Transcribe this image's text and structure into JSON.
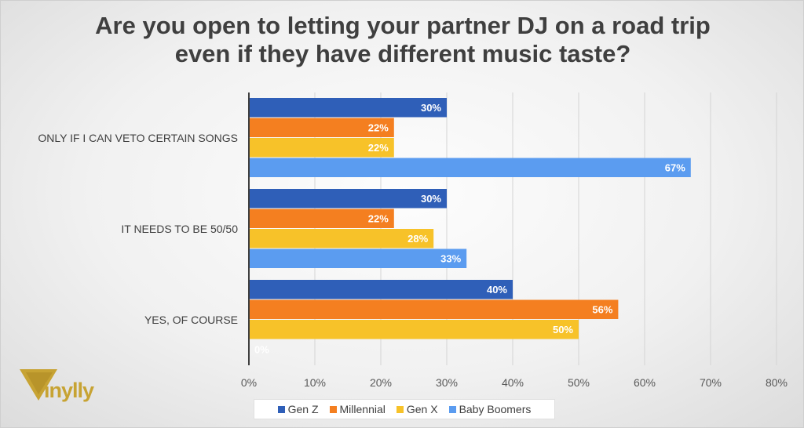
{
  "title_lines": [
    "Are you open to letting your partner DJ on a road trip",
    "even if they have different music taste?"
  ],
  "logo_text": "inylly",
  "colors": {
    "Gen Z": "#2f5fb8",
    "Millennial": "#f47f20",
    "Gen X": "#f7c229",
    "Baby Boomers": "#5b9cf0"
  },
  "chart_data": {
    "type": "bar",
    "orientation": "horizontal",
    "title": "Are you open to letting your partner DJ on a road trip even if they have different music taste?",
    "categories": [
      "ONLY IF I CAN VETO CERTAIN SONGS",
      "IT NEEDS TO BE 50/50",
      "YES, OF COURSE"
    ],
    "series": [
      {
        "name": "Gen Z",
        "values": [
          30,
          30,
          40
        ],
        "labels": [
          "30%",
          "30%",
          "40%"
        ]
      },
      {
        "name": "Millennial",
        "values": [
          22,
          22,
          56
        ],
        "labels": [
          "22%",
          "22%",
          "56%"
        ]
      },
      {
        "name": "Gen X",
        "values": [
          22,
          28,
          50
        ],
        "labels": [
          "22%",
          "28%",
          "50%"
        ]
      },
      {
        "name": "Baby Boomers",
        "values": [
          67,
          33,
          0
        ],
        "labels": [
          "67%",
          "33%",
          "0%"
        ]
      }
    ],
    "xlim": [
      0,
      80
    ],
    "xticks": [
      "0%",
      "10%",
      "20%",
      "30%",
      "40%",
      "50%",
      "60%",
      "70%",
      "80%"
    ],
    "grid": true,
    "legend": "bottom"
  }
}
